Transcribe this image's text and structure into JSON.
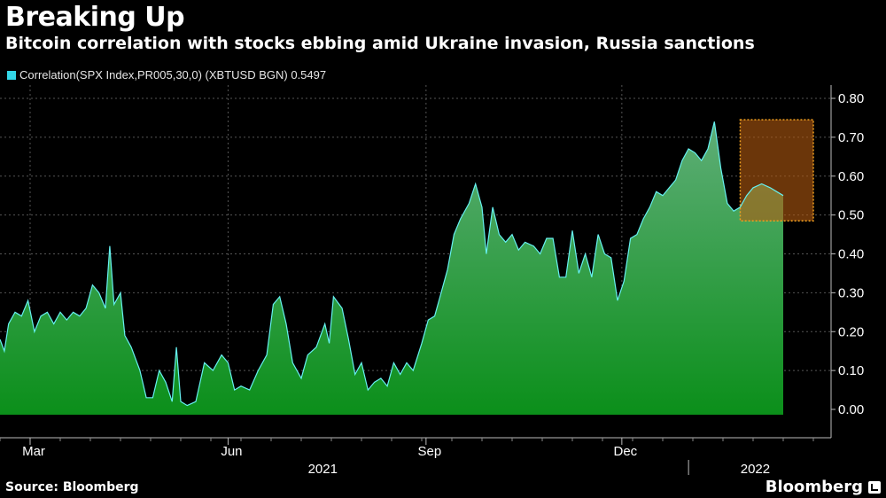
{
  "header": {
    "title": "Breaking Up",
    "subtitle": "Bitcoin correlation with stocks ebbing amid Ukraine invasion, Russia sanctions"
  },
  "footer": {
    "source": "Source: Bloomberg",
    "brand": "Bloomberg"
  },
  "colors": {
    "background": "#000000",
    "line": "#66f0f0",
    "fill_top": "#5fae78",
    "fill_bottom": "#0b8f1a",
    "highlight_fill": "#b35a10",
    "highlight_border": "#f0a020",
    "grid": "#555555"
  },
  "chart_data": {
    "type": "area",
    "legend": {
      "label": "Correlation(SPX Index,PR005,30,0) (XBTUSD BGN) 0.5497",
      "color": "#33d6e6",
      "placement": "top-left"
    },
    "ylim": [
      0,
      0.8
    ],
    "yticks": [
      "0.00",
      "0.10",
      "0.20",
      "0.30",
      "0.40",
      "0.50",
      "0.60",
      "0.70",
      "0.80"
    ],
    "ytick_values": [
      0,
      0.1,
      0.2,
      0.3,
      0.4,
      0.5,
      0.6,
      0.7,
      0.8
    ],
    "x_domain": [
      "2021-02-15",
      "2022-02-28"
    ],
    "month_ticks": [
      {
        "label": "Mar",
        "date": "2021-03-01"
      },
      {
        "label": "Jun",
        "date": "2021-06-01"
      },
      {
        "label": "Sep",
        "date": "2021-09-01"
      },
      {
        "label": "Dec",
        "date": "2021-12-01"
      }
    ],
    "year_labels": [
      {
        "label": "2021",
        "date": "2021-07-15"
      },
      {
        "label": "2022",
        "date": "2022-02-01"
      }
    ],
    "year_divider_date": "2022-01-01",
    "grid": true,
    "highlight": {
      "x_start": "2022-01-25",
      "x_end": "2022-02-28",
      "y_low": 0.485,
      "y_high": 0.745
    },
    "series": [
      {
        "name": "Correlation(SPX Index,PR005,30,0) (XBTUSD BGN)",
        "last_value": 0.5497,
        "points": [
          [
            "2021-02-15",
            0.18
          ],
          [
            "2021-02-17",
            0.15
          ],
          [
            "2021-02-19",
            0.22
          ],
          [
            "2021-02-22",
            0.25
          ],
          [
            "2021-02-25",
            0.24
          ],
          [
            "2021-02-28",
            0.28
          ],
          [
            "2021-03-03",
            0.2
          ],
          [
            "2021-03-06",
            0.24
          ],
          [
            "2021-03-09",
            0.25
          ],
          [
            "2021-03-12",
            0.22
          ],
          [
            "2021-03-15",
            0.25
          ],
          [
            "2021-03-18",
            0.23
          ],
          [
            "2021-03-21",
            0.25
          ],
          [
            "2021-03-24",
            0.24
          ],
          [
            "2021-03-27",
            0.26
          ],
          [
            "2021-03-30",
            0.32
          ],
          [
            "2021-04-02",
            0.3
          ],
          [
            "2021-04-05",
            0.26
          ],
          [
            "2021-04-07",
            0.42
          ],
          [
            "2021-04-09",
            0.27
          ],
          [
            "2021-04-12",
            0.3
          ],
          [
            "2021-04-14",
            0.19
          ],
          [
            "2021-04-17",
            0.16
          ],
          [
            "2021-04-21",
            0.1
          ],
          [
            "2021-04-24",
            0.03
          ],
          [
            "2021-04-27",
            0.03
          ],
          [
            "2021-04-30",
            0.1
          ],
          [
            "2021-05-03",
            0.07
          ],
          [
            "2021-05-06",
            0.02
          ],
          [
            "2021-05-08",
            0.16
          ],
          [
            "2021-05-10",
            0.02
          ],
          [
            "2021-05-13",
            0.01
          ],
          [
            "2021-05-17",
            0.02
          ],
          [
            "2021-05-21",
            0.12
          ],
          [
            "2021-05-25",
            0.1
          ],
          [
            "2021-05-29",
            0.14
          ],
          [
            "2021-06-01",
            0.12
          ],
          [
            "2021-06-04",
            0.05
          ],
          [
            "2021-06-07",
            0.06
          ],
          [
            "2021-06-11",
            0.05
          ],
          [
            "2021-06-15",
            0.1
          ],
          [
            "2021-06-19",
            0.14
          ],
          [
            "2021-06-22",
            0.27
          ],
          [
            "2021-06-25",
            0.29
          ],
          [
            "2021-06-28",
            0.22
          ],
          [
            "2021-07-01",
            0.12
          ],
          [
            "2021-07-05",
            0.08
          ],
          [
            "2021-07-08",
            0.14
          ],
          [
            "2021-07-12",
            0.16
          ],
          [
            "2021-07-16",
            0.22
          ],
          [
            "2021-07-18",
            0.17
          ],
          [
            "2021-07-20",
            0.29
          ],
          [
            "2021-07-24",
            0.26
          ],
          [
            "2021-07-27",
            0.18
          ],
          [
            "2021-07-30",
            0.09
          ],
          [
            "2021-08-02",
            0.12
          ],
          [
            "2021-08-05",
            0.05
          ],
          [
            "2021-08-08",
            0.07
          ],
          [
            "2021-08-11",
            0.08
          ],
          [
            "2021-08-14",
            0.06
          ],
          [
            "2021-08-17",
            0.12
          ],
          [
            "2021-08-20",
            0.09
          ],
          [
            "2021-08-23",
            0.12
          ],
          [
            "2021-08-26",
            0.1
          ],
          [
            "2021-08-30",
            0.17
          ],
          [
            "2021-09-02",
            0.23
          ],
          [
            "2021-09-05",
            0.24
          ],
          [
            "2021-09-08",
            0.3
          ],
          [
            "2021-09-11",
            0.36
          ],
          [
            "2021-09-14",
            0.45
          ],
          [
            "2021-09-17",
            0.49
          ],
          [
            "2021-09-21",
            0.53
          ],
          [
            "2021-09-24",
            0.58
          ],
          [
            "2021-09-27",
            0.52
          ],
          [
            "2021-09-29",
            0.4
          ],
          [
            "2021-10-02",
            0.52
          ],
          [
            "2021-10-05",
            0.45
          ],
          [
            "2021-10-08",
            0.43
          ],
          [
            "2021-10-11",
            0.45
          ],
          [
            "2021-10-14",
            0.41
          ],
          [
            "2021-10-17",
            0.43
          ],
          [
            "2021-10-21",
            0.42
          ],
          [
            "2021-10-24",
            0.4
          ],
          [
            "2021-10-27",
            0.44
          ],
          [
            "2021-10-30",
            0.44
          ],
          [
            "2021-11-02",
            0.34
          ],
          [
            "2021-11-05",
            0.34
          ],
          [
            "2021-11-08",
            0.46
          ],
          [
            "2021-11-11",
            0.35
          ],
          [
            "2021-11-14",
            0.4
          ],
          [
            "2021-11-17",
            0.34
          ],
          [
            "2021-11-20",
            0.45
          ],
          [
            "2021-11-23",
            0.4
          ],
          [
            "2021-11-26",
            0.39
          ],
          [
            "2021-11-29",
            0.28
          ],
          [
            "2021-12-02",
            0.33
          ],
          [
            "2021-12-05",
            0.44
          ],
          [
            "2021-12-08",
            0.45
          ],
          [
            "2021-12-11",
            0.49
          ],
          [
            "2021-12-14",
            0.52
          ],
          [
            "2021-12-17",
            0.56
          ],
          [
            "2021-12-20",
            0.55
          ],
          [
            "2021-12-23",
            0.57
          ],
          [
            "2021-12-26",
            0.59
          ],
          [
            "2021-12-29",
            0.64
          ],
          [
            "2022-01-01",
            0.67
          ],
          [
            "2022-01-04",
            0.66
          ],
          [
            "2022-01-07",
            0.64
          ],
          [
            "2022-01-10",
            0.67
          ],
          [
            "2022-01-13",
            0.74
          ],
          [
            "2022-01-16",
            0.62
          ],
          [
            "2022-01-19",
            0.53
          ],
          [
            "2022-01-22",
            0.51
          ],
          [
            "2022-01-25",
            0.52
          ],
          [
            "2022-01-28",
            0.55
          ],
          [
            "2022-01-31",
            0.57
          ],
          [
            "2022-02-04",
            0.58
          ],
          [
            "2022-02-08",
            0.57
          ],
          [
            "2022-02-11",
            0.56
          ],
          [
            "2022-02-14",
            0.55
          ]
        ]
      }
    ]
  }
}
